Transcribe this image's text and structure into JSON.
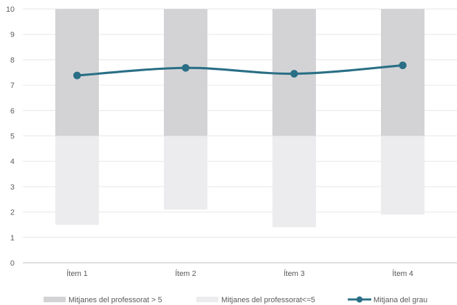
{
  "chart_data": {
    "type": "bar",
    "categories": [
      "Ítem 1",
      "Ítem 2",
      "Ítem 3",
      "Ítem 4"
    ],
    "y_ticks": [
      "0",
      "1",
      "2",
      "3",
      "4",
      "5",
      "6",
      "7",
      "8",
      "9",
      "10"
    ],
    "ylim": [
      0,
      10
    ],
    "grid": true,
    "legend_position": "bottom",
    "series": [
      {
        "name": "Mitjanes del professorat > 5",
        "type": "floating-bar",
        "low": [
          5,
          5,
          5,
          5
        ],
        "high": [
          10,
          10,
          10,
          10
        ],
        "color": "#d3d3d6"
      },
      {
        "name": "Mitjanes del professorat<=5",
        "type": "floating-bar",
        "low": [
          1.5,
          2.1,
          1.4,
          1.9
        ],
        "high": [
          5,
          5,
          5,
          5
        ],
        "color": "#ececef"
      },
      {
        "name": "Mitjana del grau",
        "type": "line",
        "smooth": true,
        "values": [
          7.38,
          7.68,
          7.45,
          7.78
        ],
        "color": "#2a6f86"
      }
    ]
  }
}
